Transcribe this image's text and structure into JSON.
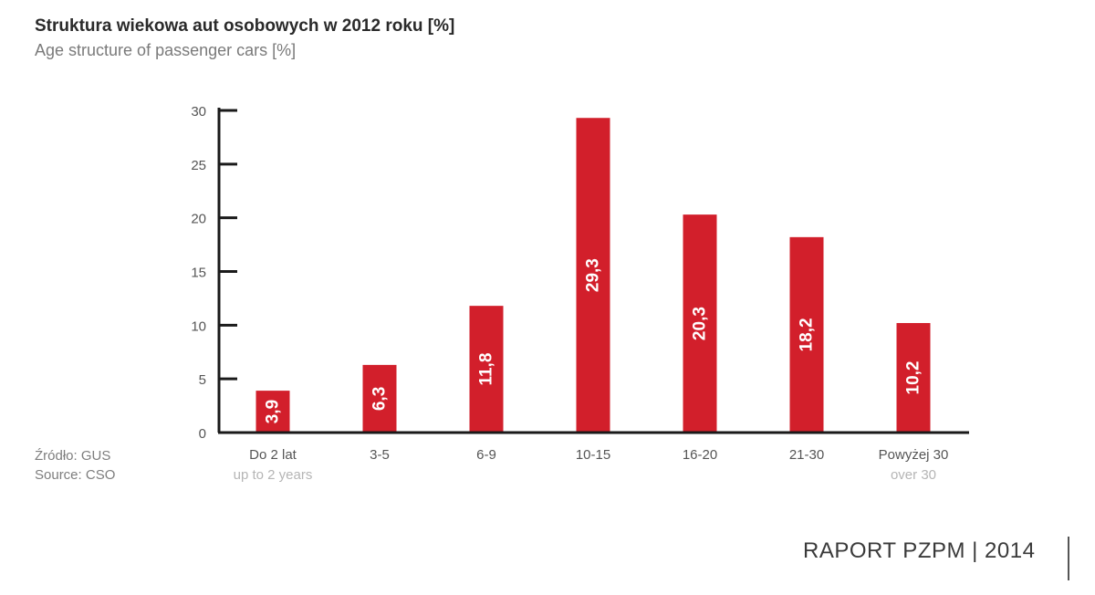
{
  "header": {
    "title": "Struktura wiekowa aut osobowych w 2012 roku [%]",
    "subtitle": "Age structure of passenger cars [%]"
  },
  "source": {
    "line_pl": "Źródło: GUS",
    "line_en": "Source: CSO"
  },
  "footer": {
    "label": "RAPORT PZPM | 2014"
  },
  "chart_data": {
    "type": "bar",
    "categories": [
      "Do 2 lat",
      "3-5",
      "6-9",
      "10-15",
      "16-20",
      "21-30",
      "Powyżej 30"
    ],
    "category_sublabels": [
      "up to 2 years",
      "",
      "",
      "",
      "",
      "",
      "over 30"
    ],
    "values": [
      3.9,
      6.3,
      11.8,
      29.3,
      20.3,
      18.2,
      10.2
    ],
    "data_labels": [
      "3,9",
      "6,3",
      "11,8",
      "29,3",
      "20,3",
      "18,2",
      "10,2"
    ],
    "ylim": [
      0,
      30
    ],
    "yticks": [
      0,
      5,
      10,
      15,
      20,
      25,
      30
    ],
    "bar_color": "#d21f2b",
    "label_color": "#ffffff",
    "sublabel_color": "#b5b5b5",
    "grid": false
  }
}
